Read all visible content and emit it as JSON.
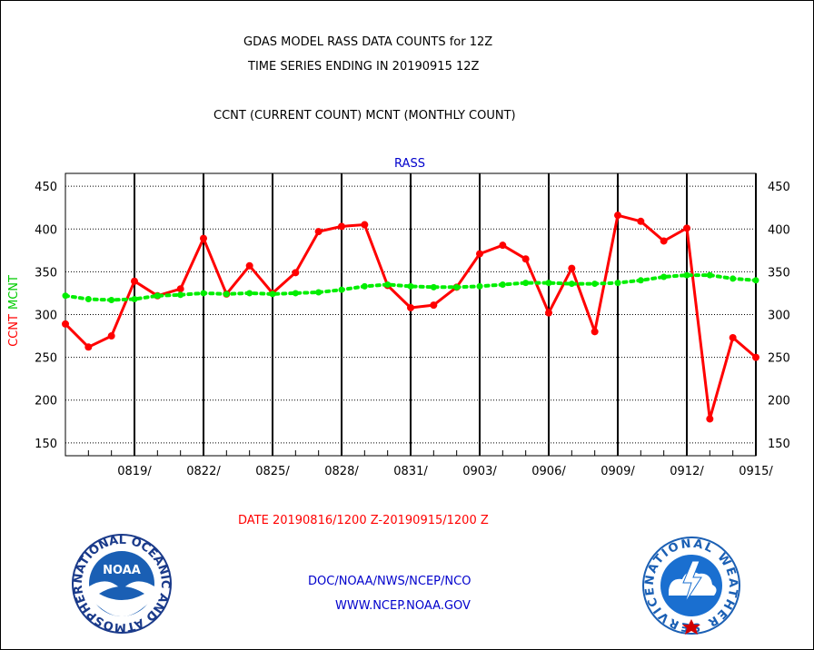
{
  "header": {
    "title_line1": "GDAS MODEL RASS DATA COUNTS for 12Z",
    "title_line2": "TIME SERIES ENDING IN 20190915 12Z",
    "subtitle": "CCNT (CURRENT COUNT) MCNT (MONTHLY COUNT)"
  },
  "footer": {
    "date_range": "DATE 20190816/1200 Z-20190915/1200 Z",
    "org": "DOC/NOAA/NWS/NCEP/NCO",
    "url": "WWW.NCEP.NOAA.GOV"
  },
  "logos": {
    "left_text": "NOAA",
    "left_ring_text": "NATIONAL OCEANIC AND ATMOSPHERIC ADMINISTRATION · U.S. DEPARTMENT OF COMMERCE",
    "right_ring_text": "NATIONAL WEATHER SERVICE"
  },
  "colors": {
    "ccnt": "#ff0000",
    "mcnt": "#00ee00",
    "panel_label": "#0000cc",
    "grid": "#000000"
  },
  "chart_data": {
    "type": "line",
    "panel_label": "RASS",
    "ylabel_ccnt": "CCNT",
    "ylabel_mcnt": "MCNT",
    "ylim": [
      135,
      465
    ],
    "yticks": [
      150,
      200,
      250,
      300,
      350,
      400,
      450
    ],
    "ytick_labels": [
      "150",
      "200",
      "250",
      "300",
      "350",
      "400",
      "450"
    ],
    "xlim": [
      0,
      30
    ],
    "xticks": [
      3,
      6,
      9,
      12,
      15,
      18,
      21,
      24,
      27,
      30
    ],
    "xtick_labels": [
      "0819/",
      "0822/",
      "0825/",
      "0828/",
      "0831/",
      "0903/",
      "0906/",
      "0909/",
      "0912/",
      "0915/"
    ],
    "minor_ticks": [
      1,
      2,
      4,
      5,
      7,
      8,
      10,
      11,
      13,
      14,
      16,
      17,
      19,
      20,
      22,
      23,
      25,
      26,
      28,
      29
    ],
    "grid": true,
    "series": [
      {
        "name": "CCNT",
        "color": "#ff0000",
        "style": "solid",
        "x": [
          0,
          1,
          2,
          3,
          4,
          5,
          6,
          7,
          8,
          9,
          10,
          11,
          12,
          13,
          14,
          15,
          16,
          17,
          18,
          19,
          20,
          21,
          22,
          23,
          24,
          25,
          26,
          27,
          28,
          29,
          30
        ],
        "values": [
          289,
          262,
          275,
          339,
          322,
          330,
          389,
          324,
          357,
          325,
          349,
          397,
          403,
          405,
          334,
          308,
          311,
          332,
          371,
          381,
          365,
          302,
          354,
          280,
          416,
          409,
          386,
          401,
          178,
          273,
          250
        ]
      },
      {
        "name": "MCNT",
        "color": "#00ee00",
        "style": "dotted",
        "x": [
          0,
          1,
          2,
          3,
          4,
          5,
          6,
          7,
          8,
          9,
          10,
          11,
          12,
          13,
          14,
          15,
          16,
          17,
          18,
          19,
          20,
          21,
          22,
          23,
          24,
          25,
          26,
          27,
          28,
          29,
          30
        ],
        "values": [
          322,
          318,
          317,
          318,
          322,
          323,
          325,
          324,
          325,
          324,
          325,
          326,
          329,
          333,
          335,
          333,
          332,
          332,
          333,
          335,
          337,
          337,
          336,
          336,
          337,
          340,
          344,
          346,
          346,
          342,
          340
        ]
      }
    ]
  }
}
